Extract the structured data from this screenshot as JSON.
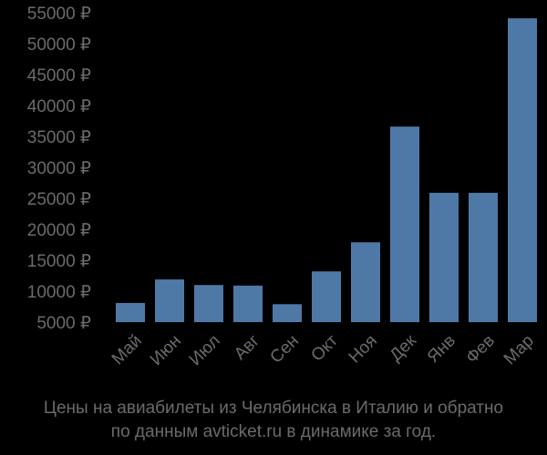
{
  "chart_data": {
    "type": "bar",
    "title": "Цены на авиабилеты из Челябинска в Италию и обратно по данным avticket.ru в динамике за год.",
    "xlabel": "",
    "ylabel": "",
    "categories": [
      "Май",
      "Июн",
      "Июл",
      "Авг",
      "Сен",
      "Окт",
      "Ноя",
      "Дек",
      "Янв",
      "Фев",
      "Мар"
    ],
    "values": [
      8100,
      11900,
      11000,
      10900,
      7900,
      13200,
      17900,
      36600,
      25900,
      25900,
      54100
    ],
    "ylim": [
      5000,
      55000
    ],
    "yticks": [
      5000,
      10000,
      15000,
      20000,
      25000,
      30000,
      35000,
      40000,
      45000,
      50000,
      55000
    ],
    "ytick_labels": [
      "5000 ₽",
      "10000 ₽",
      "15000 ₽",
      "20000 ₽",
      "25000 ₽",
      "30000 ₽",
      "35000 ₽",
      "40000 ₽",
      "45000 ₽",
      "50000 ₽",
      "55000 ₽"
    ],
    "currency": "₽",
    "grid": false,
    "legend": "none",
    "bar_color": "#4e79a7",
    "text_color": "#6b6b6b",
    "background": "#000000"
  },
  "caption": {
    "line1": "Цены на авиабилеты из Челябинска в Италию и обратно",
    "line2": "по данным avticket.ru в динамике за год."
  }
}
